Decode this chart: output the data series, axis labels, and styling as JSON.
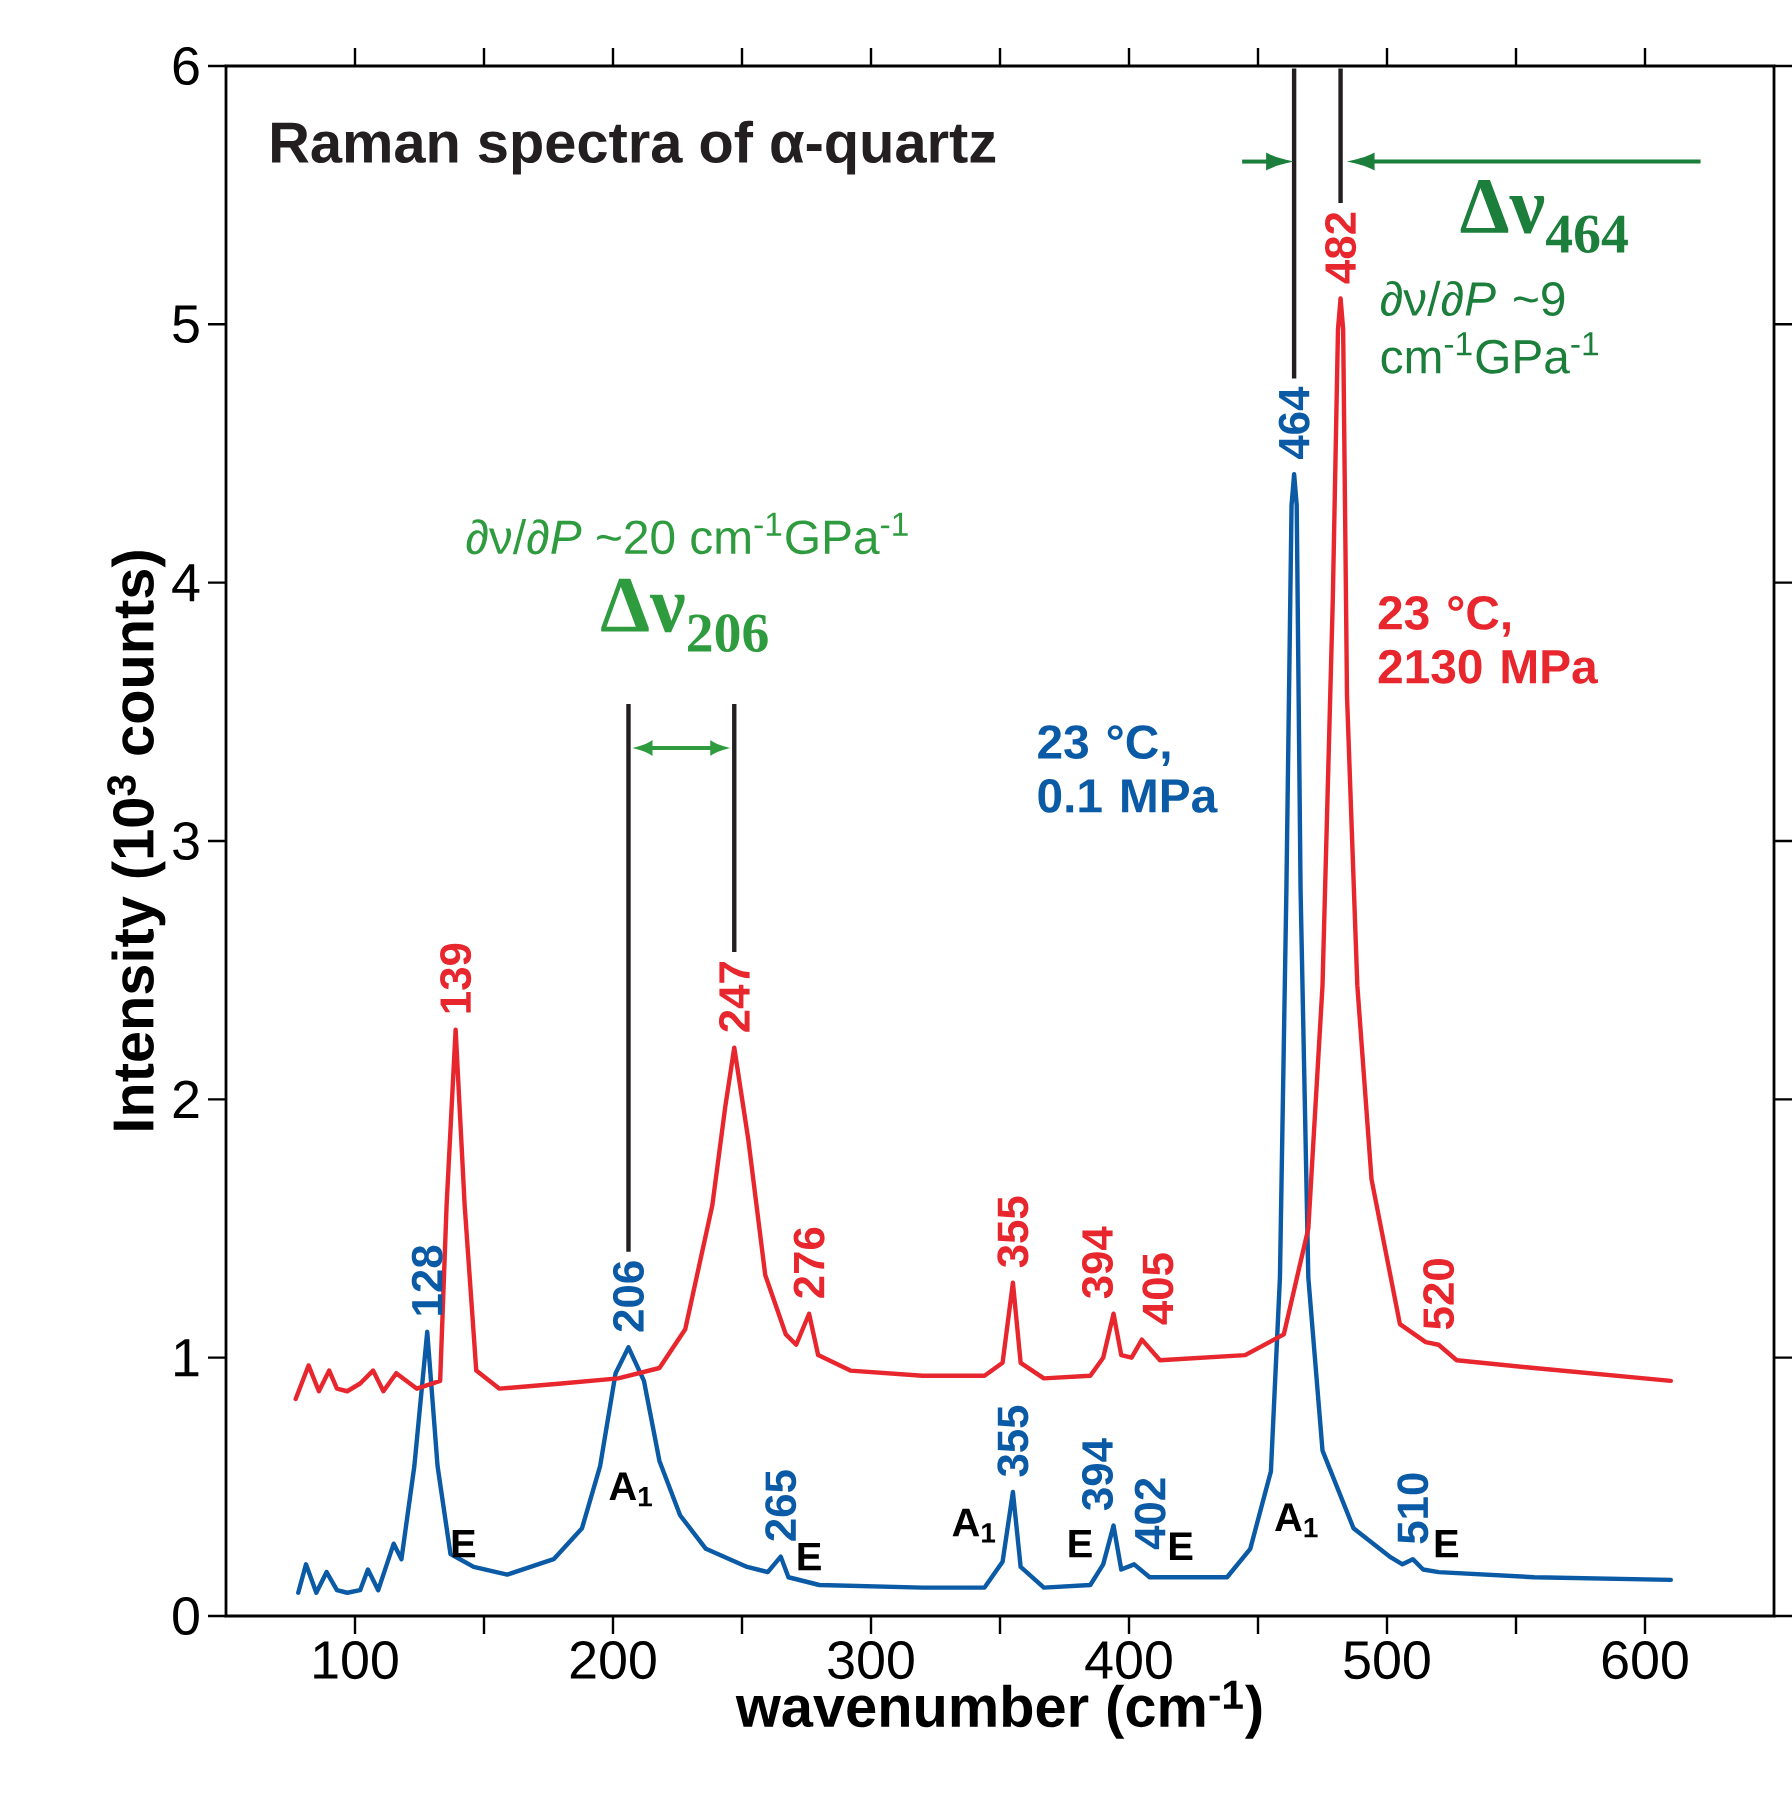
{
  "chart_data": {
    "type": "line",
    "title": "Raman spectra of α-quartz",
    "xlabel": "wavenumber (cm$^{-1}$)",
    "ylabel": "Intensity (10$^{3}$ counts)",
    "xlim": [
      50,
      650
    ],
    "ylim": [
      0,
      6
    ],
    "xticks": [
      100,
      {
        "value": 150,
        "label": null
      },
      200,
      {
        "value": 250,
        "label": null
      },
      300,
      {
        "value": 350,
        "label": null
      },
      400,
      {
        "value": 450,
        "label": null
      },
      500,
      {
        "value": 550,
        "label": null
      },
      600
    ],
    "yticks": [
      0,
      1,
      2,
      3,
      4,
      5,
      6
    ],
    "series": [
      {
        "name": "23 °C, 0.1 MPa",
        "color": "#0b5aa6",
        "x": [
          78,
          81,
          85,
          89,
          93,
          97,
          102,
          105,
          109,
          115,
          118,
          123,
          128,
          132,
          137,
          146,
          159,
          177,
          188,
          195,
          201,
          206,
          212,
          218,
          226,
          236,
          252,
          260,
          265,
          268,
          280,
          320,
          344,
          351,
          355,
          358,
          367,
          385,
          390,
          394,
          397,
          402,
          408,
          438,
          447,
          455,
          458.5,
          461,
          463,
          464,
          465,
          466.5,
          469.5,
          475,
          487,
          501,
          506,
          510,
          514,
          520,
          557,
          610
        ],
        "values": [
          0.09,
          0.2,
          0.09,
          0.17,
          0.1,
          0.09,
          0.1,
          0.18,
          0.1,
          0.28,
          0.22,
          0.58,
          1.1,
          0.58,
          0.24,
          0.19,
          0.16,
          0.22,
          0.34,
          0.58,
          0.94,
          1.04,
          0.91,
          0.6,
          0.39,
          0.26,
          0.19,
          0.17,
          0.23,
          0.15,
          0.12,
          0.11,
          0.11,
          0.21,
          0.48,
          0.19,
          0.11,
          0.12,
          0.2,
          0.35,
          0.18,
          0.2,
          0.15,
          0.15,
          0.26,
          0.56,
          1.31,
          2.81,
          4.3,
          4.42,
          4.3,
          2.81,
          1.31,
          0.64,
          0.34,
          0.23,
          0.2,
          0.22,
          0.18,
          0.17,
          0.15,
          0.14
        ]
      },
      {
        "name": "23 °C, 2130 MPa",
        "color": "#e8262d",
        "x": [
          77,
          82,
          86,
          90,
          93,
          97,
          102,
          107,
          111,
          116,
          124,
          133,
          135.5,
          139,
          142.5,
          147,
          156,
          180,
          202,
          218,
          228,
          238.5,
          243.5,
          247,
          252.5,
          259,
          267,
          271,
          276,
          279.5,
          292,
          320,
          344,
          351,
          355,
          358,
          367,
          385,
          390,
          394,
          397,
          401,
          405,
          412,
          445,
          460,
          469.5,
          475,
          479,
          481,
          482,
          483,
          484.5,
          488.5,
          494,
          505,
          515,
          520,
          527,
          557,
          610
        ],
        "values": [
          0.84,
          0.97,
          0.87,
          0.95,
          0.88,
          0.87,
          0.9,
          0.95,
          0.87,
          0.94,
          0.88,
          0.91,
          1.59,
          2.27,
          1.59,
          0.95,
          0.88,
          0.9,
          0.92,
          0.96,
          1.11,
          1.59,
          1.97,
          2.2,
          1.84,
          1.32,
          1.09,
          1.05,
          1.17,
          1.01,
          0.95,
          0.93,
          0.93,
          0.98,
          1.29,
          0.98,
          0.92,
          0.93,
          1.0,
          1.17,
          1.01,
          1.0,
          1.07,
          0.99,
          1.01,
          1.09,
          1.5,
          2.44,
          3.94,
          4.98,
          5.1,
          4.98,
          3.56,
          2.44,
          1.69,
          1.13,
          1.06,
          1.05,
          0.99,
          0.96,
          0.91
        ]
      }
    ],
    "ref_lines": [
      {
        "axis": "x",
        "value": 206,
        "color": "#231f20"
      },
      {
        "axis": "x",
        "value": 247,
        "color": "#231f20"
      },
      {
        "axis": "x",
        "value": 464,
        "color": "#231f20"
      },
      {
        "axis": "x",
        "value": 482,
        "color": "#231f20"
      }
    ],
    "annotations": [
      "∂ν/∂*P* ~20 cm$^{-1}$GPa$^{-1}$",
      "∂ν/∂*P* ~9 cm$^{-1}$GPa$^{-1}$",
      "Δν$_{206}$",
      "Δν$_{464}$",
      "E",
      "A$_{1}$",
      "E",
      "A$_{1}$",
      "E",
      "E",
      "A$_{1}$",
      "E",
      {
        "text": "128",
        "x": 128,
        "y": 1.1
      },
      {
        "text": "206",
        "x": 206,
        "y": 1.04
      },
      {
        "text": "265",
        "x": 265,
        "y": 0.23
      },
      {
        "text": "355",
        "x": 355,
        "y": 0.48
      },
      {
        "text": "394",
        "x": 394,
        "y": 0.35
      },
      {
        "text": "402",
        "x": 402,
        "y": 0.2
      },
      {
        "text": "464",
        "x": 464,
        "y": 4.42
      },
      {
        "text": "510",
        "x": 510,
        "y": 0.22
      },
      {
        "text": "139",
        "x": 139,
        "y": 2.27
      },
      {
        "text": "247",
        "x": 247,
        "y": 2.2
      },
      {
        "text": "276",
        "x": 276,
        "y": 1.17
      },
      {
        "text": "355",
        "x": 355,
        "y": 1.29
      },
      {
        "text": "394",
        "x": 394,
        "y": 1.17
      },
      {
        "text": "405",
        "x": 405,
        "y": 1.07
      },
      {
        "text": "482",
        "x": 482,
        "y": 5.1
      },
      {
        "text": "520",
        "x": 520,
        "y": 1.05
      }
    ]
  }
}
